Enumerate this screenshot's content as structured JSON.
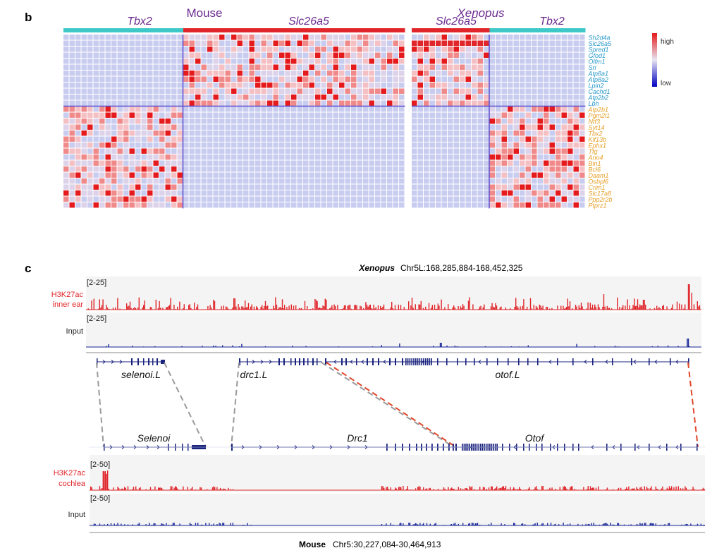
{
  "panel_b": {
    "letter": "b",
    "species": {
      "mouse": "Mouse",
      "xenopus": "Xenopus"
    },
    "groups": {
      "mouse_tbx2": "Tbx2",
      "mouse_slc": "Slc26a5",
      "xen_slc": "Slc26a5",
      "xen_tbx2": "Tbx2"
    },
    "legend": {
      "high": "high",
      "low": "low"
    },
    "genes_top": [
      "Sh2d4a",
      "Slc26a5",
      "Spred1",
      "Gfod1",
      "Olfm1",
      "Sri",
      "Atp8a1",
      "Atp8a2",
      "Lpin2",
      "Cachd1",
      "Atp2b2",
      "Lbh"
    ],
    "genes_bottom": [
      "Atp2b1",
      "Pgm2l1",
      "Ntf3",
      "Syt14",
      "Tbx2",
      "Kif13b",
      "Ephx1",
      "Tfg",
      "Ano4",
      "Bin1",
      "Bcl6",
      "Daam1",
      "Osbpl6",
      "Crim1",
      "Slc17a8",
      "Ppp2r2b",
      "Ptprz1"
    ],
    "colors": {
      "teal_group": "#3ec8c8",
      "red_group": "#e0262a",
      "heat_high": "#e41a1c",
      "heat_low": "#0000c0",
      "heat_base": "#c8cdf0",
      "gene_top": "#2b9ac9",
      "gene_bottom": "#e6a12a",
      "title": "#6b2a8f"
    }
  },
  "panel_c": {
    "letter": "c",
    "xen_title": "Xenopus",
    "xen_coords": "Chr5L:168,285,884-168,452,325",
    "mouse_title": "Mouse",
    "mouse_coords": "Chr5:30,227,084-30,464,913",
    "tracks": {
      "xen_h3k27ac_label1": "H3K27ac",
      "xen_h3k27ac_label2": "inner ear",
      "xen_h3k27ac_range": "[2-25]",
      "xen_input_label": "Input",
      "xen_input_range": "[2-25]",
      "mouse_h3k27ac_label1": "H3K27ac",
      "mouse_h3k27ac_label2": "cochlea",
      "mouse_h3k27ac_range": "[2-50]",
      "mouse_input_label": "Input",
      "mouse_input_range": "[2-50]"
    },
    "genes_xen": [
      "selenoi.L",
      "drc1.L",
      "otof.L"
    ],
    "genes_mouse": [
      "Selenoi",
      "Drc1",
      "Otof"
    ],
    "colors": {
      "signal_red": "#e0262a",
      "signal_blue": "#1b2a9a",
      "gene": "#1a237e",
      "grey_link": "#9a9a9a",
      "red_link": "#e0462a",
      "track_bg": "#f4f4f4"
    }
  }
}
